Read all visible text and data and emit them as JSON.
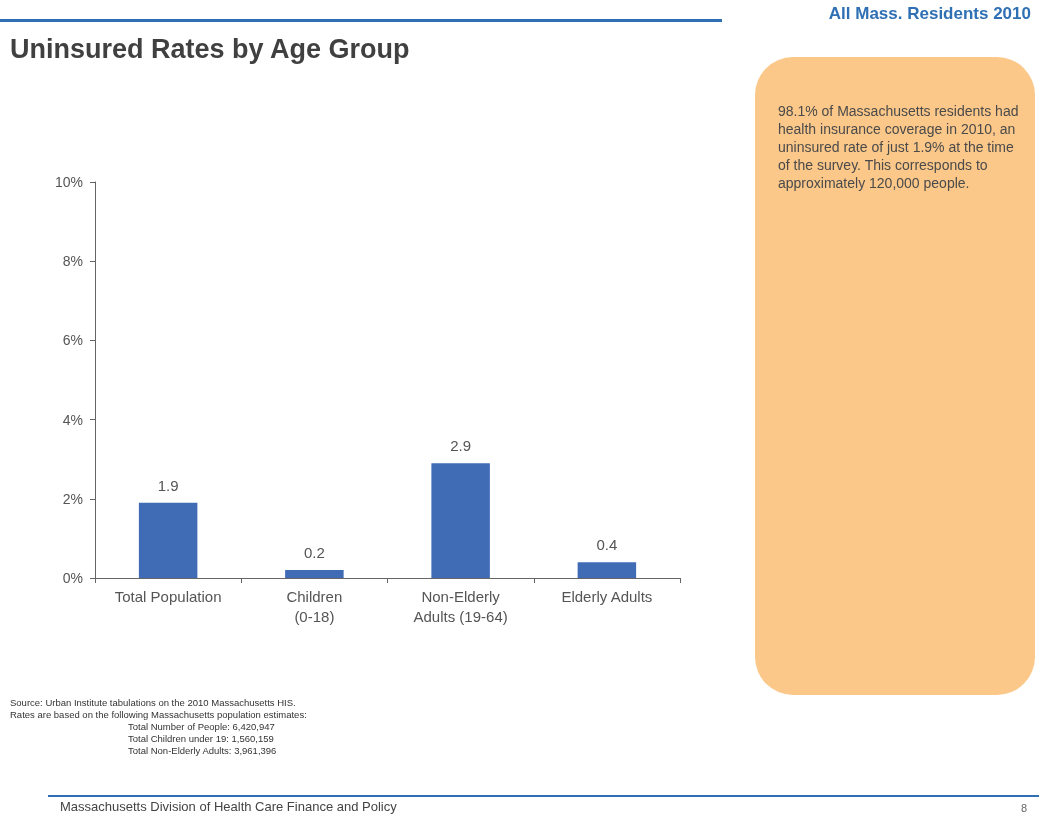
{
  "chart_data": {
    "type": "bar",
    "title": "Uninsured Rates by Age Group",
    "subtitle": "All Mass. Residents 2010",
    "categories": [
      "Total Population",
      "Children\n(0-18)",
      "Non-Elderly\nAdults (19-64)",
      "Elderly Adults"
    ],
    "values": [
      1.9,
      0.2,
      2.9,
      0.4
    ],
    "color": "#3f6cb5",
    "ylim": [
      0,
      10
    ],
    "yticks": [
      {
        "value": 0,
        "label": "0%"
      },
      {
        "value": 2,
        "label": "2%"
      },
      {
        "value": 4,
        "label": "4%"
      },
      {
        "value": 6,
        "label": "6%"
      },
      {
        "value": 8,
        "label": "8%"
      },
      {
        "value": 10,
        "label": "10%"
      }
    ],
    "grid": false,
    "data_labels": true,
    "annotations": [
      "98.1% of Massachusetts residents had health insurance coverage in 2010, an uninsured rate of just 1.9% at the time of the survey. This corresponds to approximately 120,000 people.",
      "Source: Urban Institute tabulations on the 2010 Massachusetts HIS.",
      "Rates are based on the following Massachusetts population estimates:",
      "Total Number of People: 6,420,947",
      "Total Children under 19: 1,560,159",
      "Total Non-Elderly Adults: 3,961,396",
      "Massachusetts Division of Health Care Finance and Policy",
      "8"
    ]
  }
}
